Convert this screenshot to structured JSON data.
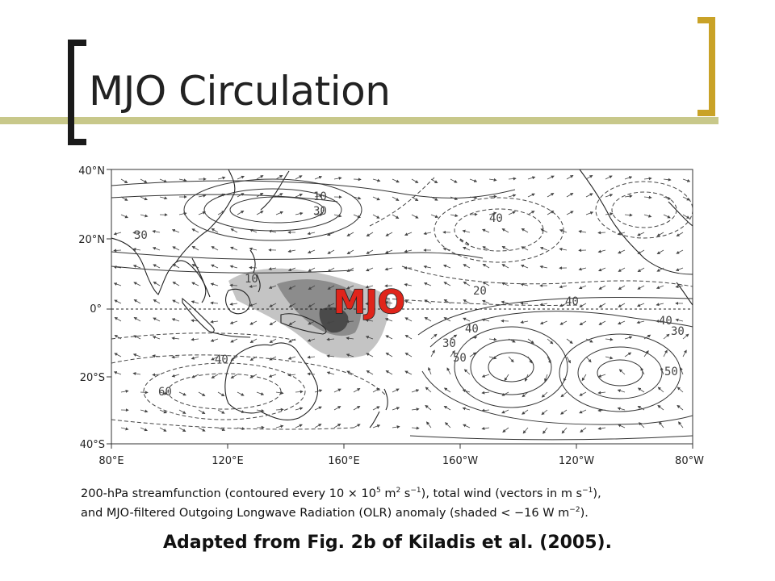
{
  "slide": {
    "title": "MJO Circulation",
    "accent_color": "#C9A227",
    "bracket_color": "#1a1a1a",
    "bar_color": "#C8C88A"
  },
  "figure": {
    "lat_labels": [
      "40°N",
      "20°N",
      "0°",
      "20°S",
      "40°S"
    ],
    "lon_labels": [
      "80°E",
      "120°E",
      "160°E",
      "160°W",
      "120°W",
      "80°W"
    ],
    "contour_labels": [
      "10",
      "30",
      "40",
      "10",
      "30",
      "20",
      "40",
      "40",
      "30",
      "30",
      "40",
      "50",
      "50",
      "40",
      "60"
    ],
    "annotation": "MJO",
    "annotation_color": "#E0251B"
  },
  "caption": {
    "line1_a": "200-hPa streamfunction (contoured every 10 × 10",
    "line1_sup1": "5",
    "line1_b": " m",
    "line1_sup2": "2",
    "line1_c": " s",
    "line1_sup3": "−1",
    "line1_d": "), total wind (vectors in m s",
    "line1_sup4": "−1",
    "line1_e": "),",
    "line2_a": "and MJO-filtered Outgoing Longwave Radiation (OLR) anomaly (shaded < −16 W m",
    "line2_sup": "−2",
    "line2_b": ")."
  },
  "source": "Adapted from Fig. 2b of Kiladis et al. (2005)."
}
